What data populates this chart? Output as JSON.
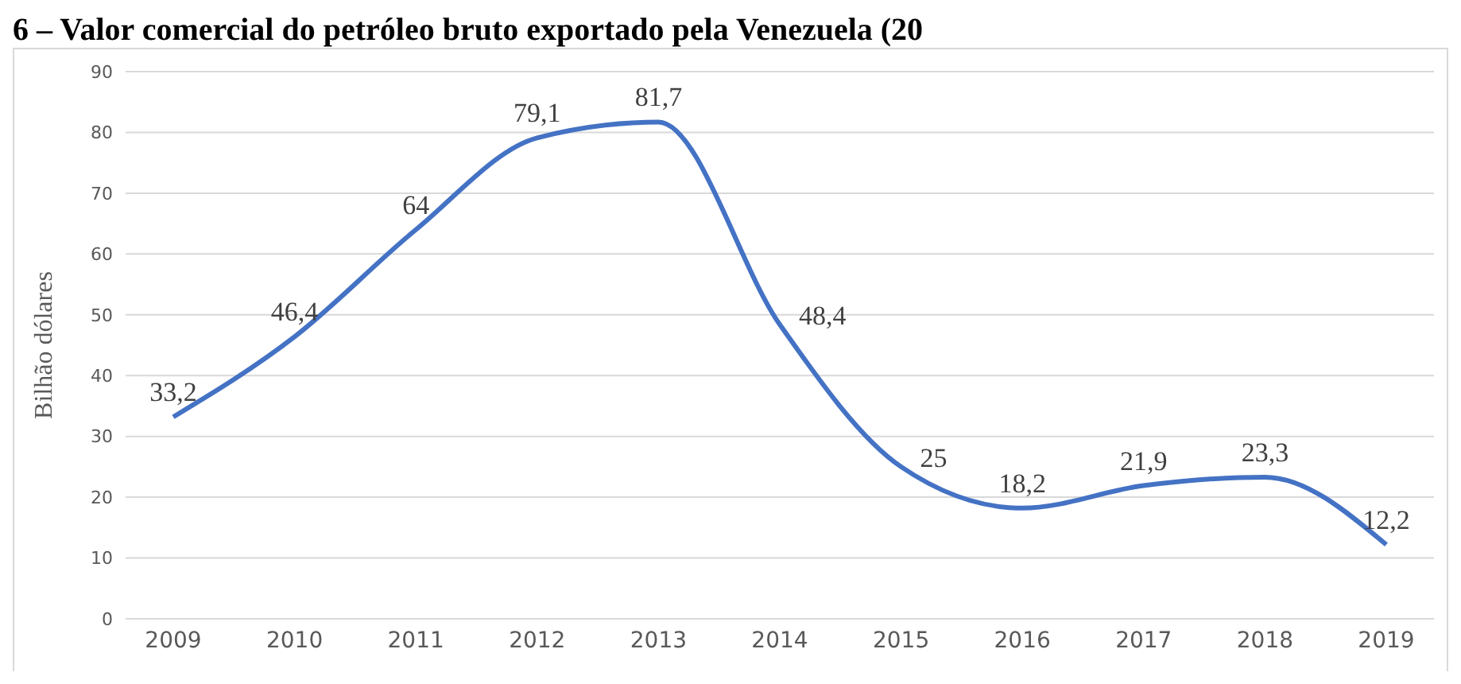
{
  "chart_data": {
    "type": "line",
    "title": "6 – Valor comercial do petróleo bruto exportado pela Venezuela (20",
    "ylabel": "Bilhão dólares",
    "categories": [
      "2009",
      "2010",
      "2011",
      "2012",
      "2013",
      "2014",
      "2015",
      "2016",
      "2017",
      "2018",
      "2019"
    ],
    "series": [
      {
        "color": "#4472c4",
        "values": [
          33.2,
          46.4,
          64,
          79.1,
          81.7,
          48.4,
          25,
          18.2,
          21.9,
          23.3,
          12.2
        ],
        "value_labels": [
          "33,2",
          "46,4",
          "64",
          "79,1",
          "81,7",
          "48,4",
          "25",
          "18,2",
          "21,9",
          "23,3",
          "12,2"
        ]
      }
    ],
    "ylim": [
      0,
      90
    ],
    "yticks": [
      0,
      10,
      20,
      30,
      40,
      50,
      60,
      70,
      80,
      90
    ],
    "grid": "y",
    "legend": false,
    "marker": "none",
    "line_style": "solid"
  }
}
